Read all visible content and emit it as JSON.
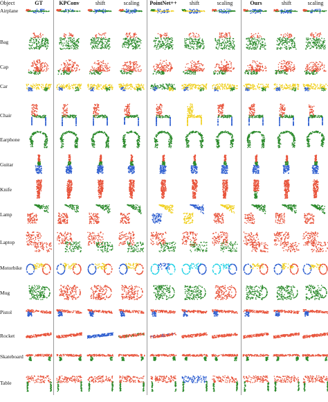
{
  "header": {
    "object": "Object",
    "columns": [
      {
        "label": "GT",
        "bold": true
      },
      {
        "label": "KPConv",
        "bold": true
      },
      {
        "label": "shift",
        "bold": false
      },
      {
        "label": "scaling",
        "bold": false
      },
      {
        "label": "PointNet++",
        "bold": true
      },
      {
        "label": "shift",
        "bold": false
      },
      {
        "label": "scaling",
        "bold": false
      },
      {
        "label": "Ours",
        "bold": true
      },
      {
        "label": "shift",
        "bold": false
      },
      {
        "label": "scaling",
        "bold": false
      }
    ]
  },
  "rows": [
    {
      "label": "Airplane",
      "shape": "airplane",
      "cols": [
        [
          "#2b8a2b",
          "#2f5fd0",
          "#e8533a"
        ],
        [
          "#2b8a2b",
          "#2f5fd0",
          "#e8533a"
        ],
        [
          "#2b8a2b",
          "#2f5fd0",
          "#e8533a"
        ],
        [
          "#2b8a2b",
          "#2f5fd0",
          "#e8533a"
        ],
        [
          "#f0d020",
          "#2f5fd0",
          "#2b8a2b"
        ],
        [
          "#f0d020",
          "#2f5fd0",
          "#2b8a2b"
        ],
        [
          "#2b8a2b",
          "#2f5fd0",
          "#e8533a"
        ],
        [
          "#2b8a2b",
          "#2f5fd0",
          "#e8533a"
        ],
        [
          "#2b8a2b",
          "#2f5fd0",
          "#e8533a"
        ],
        [
          "#2b8a2b",
          "#2f5fd0",
          "#e8533a"
        ]
      ]
    },
    {
      "label": "Bag",
      "shape": "bag",
      "cols": [
        [
          "#2b8a2b",
          "#e8533a"
        ],
        [
          "#2b8a2b",
          "#e8533a"
        ],
        [
          "#2b8a2b",
          "#e8533a"
        ],
        [
          "#2b8a2b",
          "#e8533a"
        ],
        [
          "#2b8a2b",
          "#e8533a"
        ],
        [
          "#2b8a2b",
          "#e8533a"
        ],
        [
          "#2b8a2b",
          "#e8533a"
        ],
        [
          "#2b8a2b",
          "#e8533a"
        ],
        [
          "#2b8a2b",
          "#e8533a"
        ],
        [
          "#2b8a2b",
          "#e8533a"
        ]
      ]
    },
    {
      "label": "Cap",
      "shape": "cap",
      "cols": [
        [
          "#e8533a",
          "#2b8a2b"
        ],
        [
          "#e8533a",
          "#2b8a2b"
        ],
        [
          "#e8533a",
          "#2b8a2b"
        ],
        [
          "#e8533a",
          "#2b8a2b"
        ],
        [
          "#e8533a",
          "#2b8a2b"
        ],
        [
          "#e8533a",
          "#2b8a2b"
        ],
        [
          "#e8533a",
          "#2b8a2b"
        ],
        [
          "#e8533a",
          "#2b8a2b"
        ],
        [
          "#e8533a",
          "#2b8a2b"
        ],
        [
          "#e8533a",
          "#2b8a2b"
        ]
      ]
    },
    {
      "label": "Car",
      "shape": "car",
      "cols": [
        [
          "#f0d020",
          "#2f5fd0",
          "#2b8a2b"
        ],
        [
          "#f0d020",
          "#2f5fd0",
          "#2b8a2b"
        ],
        [
          "#f0d020",
          "#2f5fd0",
          "#2b8a2b"
        ],
        [
          "#f0d020",
          "#2f5fd0",
          "#2b8a2b"
        ],
        [
          "#2b8a2b",
          "#2f5fd0",
          "#f0d020"
        ],
        [
          "#f0d020",
          "#2f5fd0",
          "#2b8a2b"
        ],
        [
          "#f0d020",
          "#2f5fd0",
          "#2b8a2b"
        ],
        [
          "#f0d020",
          "#2f5fd0",
          "#2b8a2b"
        ],
        [
          "#f0d020",
          "#2f5fd0",
          "#2b8a2b"
        ],
        [
          "#f0d020",
          "#2f5fd0",
          "#2b8a2b"
        ]
      ]
    },
    {
      "label": "Chair",
      "shape": "chair",
      "cols": [
        [
          "#e8533a",
          "#2b8a2b",
          "#2f5fd0"
        ],
        [
          "#e8533a",
          "#2b8a2b",
          "#2f5fd0"
        ],
        [
          "#e8533a",
          "#2b8a2b",
          "#2f5fd0"
        ],
        [
          "#e8533a",
          "#2b8a2b",
          "#2f5fd0"
        ],
        [
          "#e8533a",
          "#2b8a2b",
          "#2f5fd0"
        ],
        [
          "#f0d020",
          "#f0d020",
          "#f0d020"
        ],
        [
          "#e8533a",
          "#2b8a2b",
          "#2f5fd0"
        ],
        [
          "#e8533a",
          "#2b8a2b",
          "#2f5fd0"
        ],
        [
          "#e8533a",
          "#2b8a2b",
          "#2f5fd0"
        ],
        [
          "#e8533a",
          "#2b8a2b",
          "#2f5fd0"
        ]
      ]
    },
    {
      "label": "Earphone",
      "shape": "earphone",
      "cols": [
        [
          "#2b8a2b",
          "#2b8a2b"
        ],
        [
          "#2b8a2b",
          "#2b8a2b"
        ],
        [
          "#2b8a2b",
          "#2b8a2b"
        ],
        [
          "#2b8a2b",
          "#2b8a2b"
        ],
        [
          "#2b8a2b",
          "#2b8a2b"
        ],
        [
          "#2b8a2b",
          "#2b8a2b"
        ],
        [
          "#2b8a2b",
          "#2b8a2b"
        ],
        [
          "#2b8a2b",
          "#2b8a2b"
        ],
        [
          "#2b8a2b",
          "#2b8a2b"
        ],
        [
          "#2b8a2b",
          "#2b8a2b"
        ]
      ]
    },
    {
      "label": "Guitar",
      "shape": "guitar",
      "cols": [
        [
          "#e8533a",
          "#2b8a2b",
          "#2f5fd0"
        ],
        [
          "#e8533a",
          "#2b8a2b",
          "#2f5fd0"
        ],
        [
          "#e8533a",
          "#2b8a2b",
          "#2f5fd0"
        ],
        [
          "#e8533a",
          "#2b8a2b",
          "#2f5fd0"
        ],
        [
          "#e8533a",
          "#2b8a2b",
          "#2f5fd0"
        ],
        [
          "#e8533a",
          "#2b8a2b",
          "#2f5fd0"
        ],
        [
          "#e8533a",
          "#2b8a2b",
          "#2f5fd0"
        ],
        [
          "#e8533a",
          "#2b8a2b",
          "#2f5fd0"
        ],
        [
          "#e8533a",
          "#2b8a2b",
          "#2f5fd0"
        ],
        [
          "#e8533a",
          "#2b8a2b",
          "#2f5fd0"
        ]
      ]
    },
    {
      "label": "Knife",
      "shape": "knife",
      "cols": [
        [
          "#e8533a",
          "#e8533a"
        ],
        [
          "#e8533a",
          "#e8533a"
        ],
        [
          "#e8533a",
          "#e8533a"
        ],
        [
          "#e8533a",
          "#e8533a"
        ],
        [
          "#e8533a",
          "#e8533a"
        ],
        [
          "#e8533a",
          "#e8533a"
        ],
        [
          "#e8533a",
          "#e8533a"
        ],
        [
          "#e8533a",
          "#2b8a2b"
        ],
        [
          "#e8533a",
          "#e8533a"
        ],
        [
          "#e8533a",
          "#e8533a"
        ]
      ]
    },
    {
      "label": "Lamp",
      "shape": "lamp",
      "cols": [
        [
          "#2b8a2b",
          "#e8533a"
        ],
        [
          "#2b8a2b",
          "#e8533a"
        ],
        [
          "#2b8a2b",
          "#e8533a"
        ],
        [
          "#2b8a2b",
          "#e8533a"
        ],
        [
          "#f0d020",
          "#2f5fd0"
        ],
        [
          "#2f5fd0",
          "#f0d020"
        ],
        [
          "#f0d020",
          "#e8533a"
        ],
        [
          "#2b8a2b",
          "#e8533a"
        ],
        [
          "#2b8a2b",
          "#e8533a"
        ],
        [
          "#2b8a2b",
          "#e8533a"
        ]
      ]
    },
    {
      "label": "Laptop",
      "shape": "laptop",
      "cols": [
        [
          "#e8533a",
          "#e8533a"
        ],
        [
          "#e8533a",
          "#2b8a2b"
        ],
        [
          "#e8533a",
          "#2b8a2b"
        ],
        [
          "#e8533a",
          "#2b8a2b"
        ],
        [
          "#e8533a",
          "#2b8a2b"
        ],
        [
          "#e8533a",
          "#2b8a2b"
        ],
        [
          "#e8533a",
          "#2b8a2b"
        ],
        [
          "#e8533a",
          "#e8533a"
        ],
        [
          "#e8533a",
          "#e8533a"
        ],
        [
          "#e8533a",
          "#e8533a"
        ]
      ]
    },
    {
      "label": "Motorbike",
      "shape": "motorbike",
      "cols": [
        [
          "#2f5fd0",
          "#e8533a",
          "#f0d020"
        ],
        [
          "#2f5fd0",
          "#e8533a",
          "#f0d020"
        ],
        [
          "#2f5fd0",
          "#e8533a",
          "#f0d020"
        ],
        [
          "#2f5fd0",
          "#e8533a",
          "#f0d020"
        ],
        [
          "#27d3e6",
          "#27d3e6",
          "#2f5fd0"
        ],
        [
          "#27d3e6",
          "#2f5fd0",
          "#27d3e6"
        ],
        [
          "#27d3e6",
          "#2f5fd0",
          "#27d3e6"
        ],
        [
          "#2f5fd0",
          "#e8533a",
          "#f0d020"
        ],
        [
          "#2f5fd0",
          "#e8533a",
          "#f0d020"
        ],
        [
          "#2f5fd0",
          "#e8533a",
          "#f0d020"
        ]
      ]
    },
    {
      "label": "Mug",
      "shape": "mug",
      "cols": [
        [
          "#2b8a2b",
          "#2b8a2b"
        ],
        [
          "#e8533a",
          "#e8533a"
        ],
        [
          "#e8533a",
          "#e8533a"
        ],
        [
          "#e8533a",
          "#e8533a"
        ],
        [
          "#2b8a2b",
          "#2b8a2b"
        ],
        [
          "#2b8a2b",
          "#2b8a2b"
        ],
        [
          "#e8533a",
          "#e8533a"
        ],
        [
          "#2b8a2b",
          "#2b8a2b"
        ],
        [
          "#2b8a2b",
          "#2b8a2b"
        ],
        [
          "#2b8a2b",
          "#2b8a2b"
        ]
      ]
    },
    {
      "label": "Pistol",
      "shape": "pistol",
      "cols": [
        [
          "#e8533a",
          "#2f5fd0"
        ],
        [
          "#e8533a",
          "#2f5fd0"
        ],
        [
          "#e8533a",
          "#2f5fd0"
        ],
        [
          "#e8533a",
          "#2f5fd0"
        ],
        [
          "#e8533a",
          "#2f5fd0"
        ],
        [
          "#e8533a",
          "#2f5fd0"
        ],
        [
          "#e8533a",
          "#2f5fd0"
        ],
        [
          "#e8533a",
          "#2f5fd0"
        ],
        [
          "#e8533a",
          "#2f5fd0"
        ],
        [
          "#e8533a",
          "#2f5fd0"
        ]
      ]
    },
    {
      "label": "Rocket",
      "shape": "rocket",
      "cols": [
        [
          "#e8533a",
          "#e8533a"
        ],
        [
          "#e8533a",
          "#e8533a"
        ],
        [
          "#2f5fd0",
          "#2f5fd0"
        ],
        [
          "#e8533a",
          "#2b8a2b"
        ],
        [
          "#e8533a",
          "#2f5fd0"
        ],
        [
          "#e8533a",
          "#e8533a"
        ],
        [
          "#e8533a",
          "#e8533a"
        ],
        [
          "#e8533a",
          "#e8533a"
        ],
        [
          "#e8533a",
          "#e8533a"
        ],
        [
          "#e8533a",
          "#e8533a"
        ]
      ]
    },
    {
      "label": "Skateboard",
      "shape": "skateboard",
      "cols": [
        [
          "#e8533a",
          "#2b8a2b"
        ],
        [
          "#e8533a",
          "#2b8a2b"
        ],
        [
          "#e8533a",
          "#2b8a2b"
        ],
        [
          "#e8533a",
          "#2b8a2b"
        ],
        [
          "#e8533a",
          "#2b8a2b"
        ],
        [
          "#e8533a",
          "#2b8a2b"
        ],
        [
          "#e8533a",
          "#2b8a2b"
        ],
        [
          "#e8533a",
          "#2b8a2b"
        ],
        [
          "#e8533a",
          "#2b8a2b"
        ],
        [
          "#e8533a",
          "#2b8a2b"
        ]
      ]
    },
    {
      "label": "Table",
      "shape": "table",
      "cols": [
        [
          "#e8533a",
          "#2b8a2b"
        ],
        [
          "#e8533a",
          "#2b8a2b"
        ],
        [
          "#e8533a",
          "#2b8a2b"
        ],
        [
          "#e8533a",
          "#2b8a2b"
        ],
        [
          "#e8533a",
          "#2b8a2b"
        ],
        [
          "#2f5fd0",
          "#2b8a2b"
        ],
        [
          "#e8533a",
          "#2b8a2b"
        ],
        [
          "#e8533a",
          "#2b8a2b"
        ],
        [
          "#e8533a",
          "#2b8a2b"
        ],
        [
          "#e8533a",
          "#2b8a2b"
        ]
      ]
    }
  ]
}
